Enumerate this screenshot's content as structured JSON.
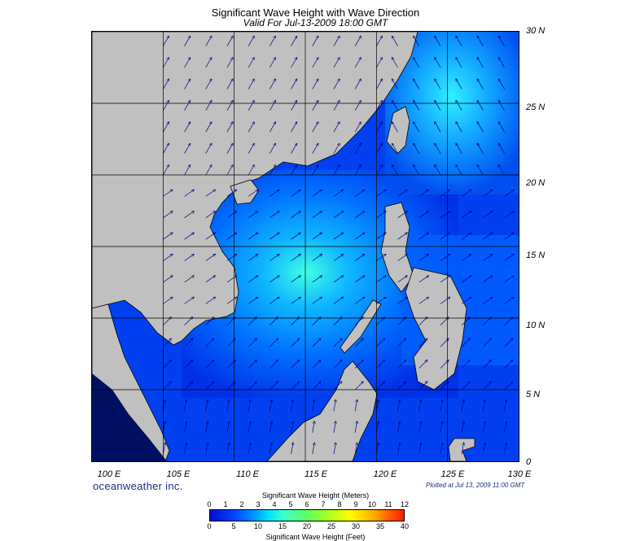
{
  "title": "Significant Wave Height with Wave Direction",
  "subtitle": "Valid For Jul-13-2009 18:00 GMT",
  "lat_labels": [
    "30 N",
    "25 N",
    "20 N",
    "15 N",
    "10 N",
    "5 N",
    "0"
  ],
  "lon_labels": [
    "100 E",
    "105 E",
    "110 E",
    "115 E",
    "120 E",
    "125 E",
    "130 E"
  ],
  "brand": "oceanweather inc.",
  "plotted": "Plotted at Jul 13, 2009 11:00 GMT",
  "colorbar": {
    "top_label": "Significant Wave Height (Meters)",
    "bottom_label": "Significant Wave Height (Feet)",
    "meters_ticks": [
      "0",
      "1",
      "2",
      "3",
      "4",
      "5",
      "6",
      "7",
      "8",
      "9",
      "10",
      "11",
      "12"
    ],
    "feet_ticks": [
      "0",
      "5",
      "10",
      "15",
      "20",
      "25",
      "30",
      "35",
      "40"
    ]
  },
  "colors": {
    "land": "#c0c0c0",
    "sea_low": "#0020e0",
    "sea_high": "#30e8ff",
    "arrow": "#000080"
  },
  "map_extent": {
    "lon_min": 100,
    "lon_max": 130,
    "lat_min": 0,
    "lat_max": 30
  },
  "arrow_grid_spacing_deg": 1.5
}
